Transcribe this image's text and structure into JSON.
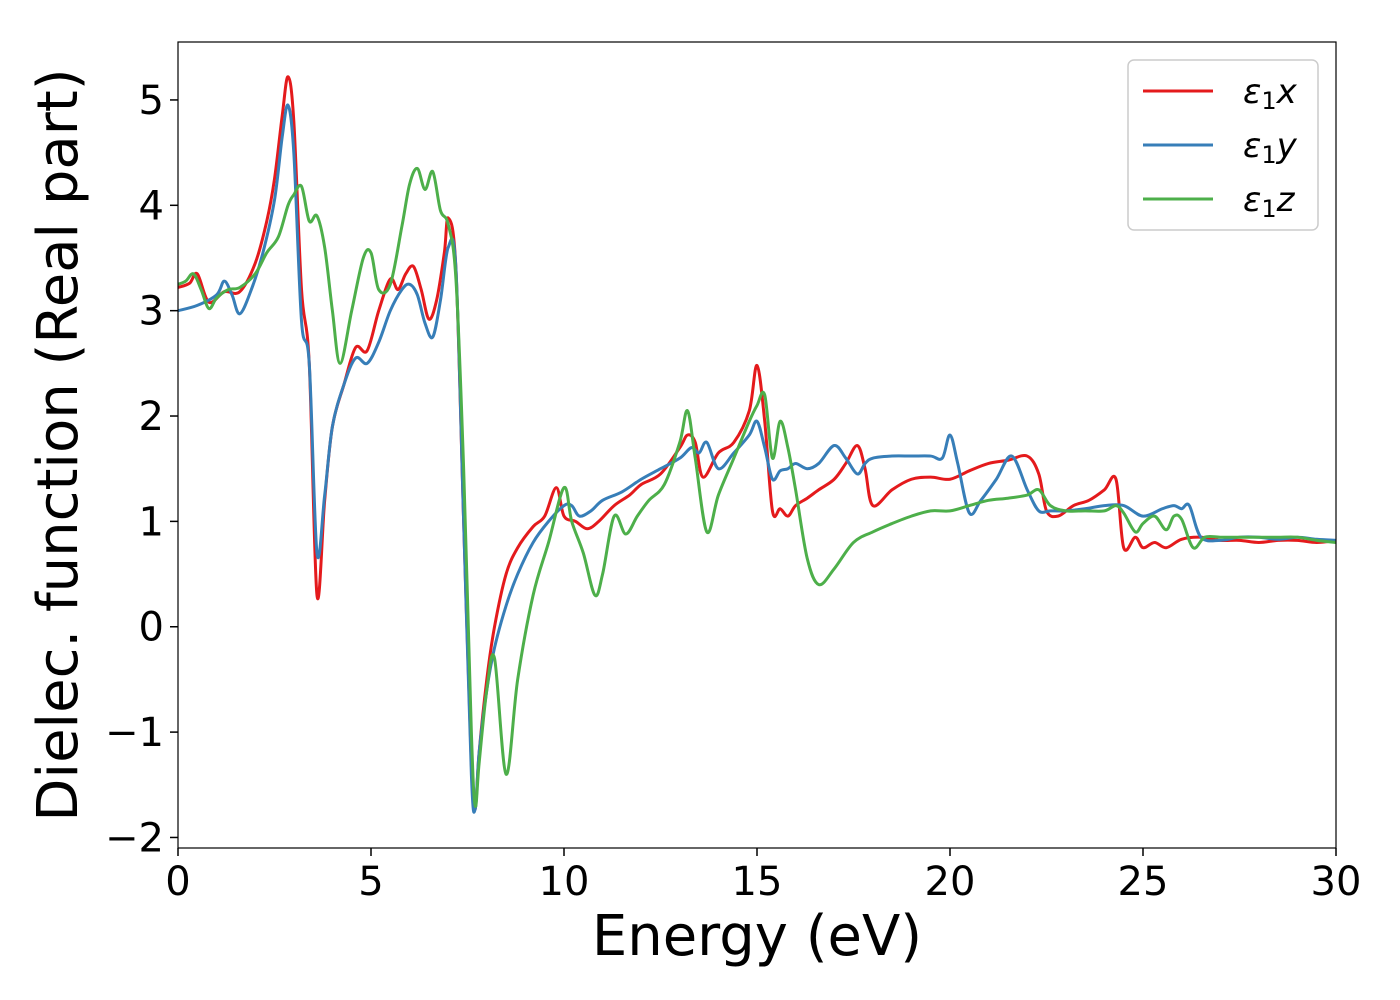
{
  "chart_data": {
    "type": "line",
    "title": "",
    "xlabel": "Energy (eV)",
    "ylabel": "Dielec. function (Real part)",
    "xlim": [
      0,
      30
    ],
    "ylim": [
      -2.1,
      5.55
    ],
    "xticks": [
      {
        "value": 0,
        "label": "0"
      },
      {
        "value": 5,
        "label": "5"
      },
      {
        "value": 10,
        "label": "10"
      },
      {
        "value": 15,
        "label": "15"
      },
      {
        "value": 20,
        "label": "20"
      },
      {
        "value": 25,
        "label": "25"
      },
      {
        "value": 30,
        "label": "30"
      }
    ],
    "yticks": [
      {
        "value": -2,
        "label": "−2"
      },
      {
        "value": -1,
        "label": "−1"
      },
      {
        "value": 0,
        "label": "0"
      },
      {
        "value": 1,
        "label": "1"
      },
      {
        "value": 2,
        "label": "2"
      },
      {
        "value": 3,
        "label": "3"
      },
      {
        "value": 4,
        "label": "4"
      },
      {
        "value": 5,
        "label": "5"
      }
    ],
    "grid": false,
    "legend_position": "top-right",
    "series": [
      {
        "name": "ε₁x",
        "legend_symbol": "ε",
        "legend_sub": "1",
        "legend_var": "x",
        "color": "#e41a1c",
        "x": [
          0,
          0.3,
          0.5,
          0.8,
          1.2,
          1.6,
          2.0,
          2.3,
          2.5,
          2.7,
          2.85,
          3.0,
          3.2,
          3.4,
          3.6,
          3.8,
          4.0,
          4.3,
          4.6,
          4.9,
          5.2,
          5.5,
          5.7,
          5.9,
          6.1,
          6.3,
          6.5,
          6.7,
          6.9,
          7.0,
          7.2,
          7.4,
          7.6,
          7.7,
          7.8,
          8.0,
          8.2,
          8.5,
          8.8,
          9.2,
          9.5,
          9.8,
          10.0,
          10.3,
          10.6,
          10.9,
          11.3,
          11.7,
          12.0,
          12.5,
          13.0,
          13.2,
          13.4,
          13.6,
          14.0,
          14.4,
          14.8,
          15.0,
          15.2,
          15.4,
          15.6,
          15.8,
          16.0,
          16.3,
          16.6,
          17.0,
          17.3,
          17.6,
          17.8,
          18.0,
          18.5,
          19.0,
          19.5,
          20.0,
          20.5,
          21.0,
          21.5,
          22.0,
          22.3,
          22.5,
          22.8,
          23.2,
          23.6,
          24.0,
          24.3,
          24.5,
          24.8,
          25.0,
          25.3,
          25.6,
          26.0,
          26.5,
          27.0,
          27.5,
          28.0,
          28.5,
          29.0,
          29.5,
          30.0
        ],
        "y": [
          3.22,
          3.26,
          3.35,
          3.08,
          3.18,
          3.18,
          3.45,
          3.85,
          4.25,
          4.85,
          5.22,
          4.8,
          3.2,
          2.5,
          0.3,
          1.2,
          1.9,
          2.3,
          2.65,
          2.62,
          3.0,
          3.3,
          3.2,
          3.35,
          3.42,
          3.2,
          2.92,
          3.1,
          3.55,
          3.88,
          3.4,
          1.0,
          -1.3,
          -1.73,
          -1.2,
          -0.5,
          0.0,
          0.5,
          0.75,
          0.95,
          1.05,
          1.32,
          1.05,
          1.0,
          0.93,
          1.0,
          1.15,
          1.25,
          1.35,
          1.45,
          1.7,
          1.82,
          1.75,
          1.42,
          1.65,
          1.75,
          2.05,
          2.48,
          1.95,
          1.1,
          1.12,
          1.05,
          1.15,
          1.22,
          1.3,
          1.4,
          1.55,
          1.72,
          1.5,
          1.15,
          1.3,
          1.4,
          1.42,
          1.4,
          1.48,
          1.55,
          1.58,
          1.62,
          1.45,
          1.1,
          1.05,
          1.15,
          1.2,
          1.3,
          1.4,
          0.75,
          0.85,
          0.75,
          0.8,
          0.75,
          0.83,
          0.85,
          0.82,
          0.82,
          0.8,
          0.82,
          0.82,
          0.8,
          0.82
        ]
      },
      {
        "name": "ε₁y",
        "legend_symbol": "ε",
        "legend_sub": "1",
        "legend_var": "y",
        "color": "#377eb8",
        "x": [
          0,
          0.5,
          1.0,
          1.2,
          1.4,
          1.6,
          1.9,
          2.2,
          2.5,
          2.7,
          2.85,
          3.0,
          3.2,
          3.4,
          3.6,
          3.8,
          4.0,
          4.3,
          4.6,
          4.9,
          5.2,
          5.5,
          5.8,
          6.0,
          6.2,
          6.4,
          6.6,
          6.8,
          7.0,
          7.2,
          7.4,
          7.6,
          7.7,
          7.8,
          8.0,
          8.2,
          8.5,
          8.8,
          9.2,
          9.6,
          10.0,
          10.2,
          10.4,
          10.7,
          11.0,
          11.5,
          12.0,
          12.5,
          13.0,
          13.3,
          13.5,
          13.7,
          14.0,
          14.4,
          14.8,
          15.0,
          15.2,
          15.4,
          15.6,
          15.8,
          16.0,
          16.3,
          16.6,
          17.0,
          17.3,
          17.6,
          17.8,
          18.0,
          18.5,
          19.0,
          19.5,
          19.8,
          20.0,
          20.2,
          20.5,
          20.8,
          21.2,
          21.6,
          22.0,
          22.3,
          22.6,
          23.0,
          23.5,
          24.0,
          24.5,
          25.0,
          25.5,
          25.8,
          26.0,
          26.2,
          26.5,
          27.0,
          27.5,
          28.0,
          28.5,
          29.0,
          29.5,
          30.0
        ],
        "y": [
          3.0,
          3.05,
          3.15,
          3.28,
          3.15,
          2.97,
          3.2,
          3.55,
          4.05,
          4.65,
          4.95,
          4.5,
          2.9,
          2.5,
          0.7,
          1.25,
          1.9,
          2.3,
          2.55,
          2.5,
          2.7,
          3.0,
          3.2,
          3.25,
          3.15,
          2.88,
          2.75,
          3.1,
          3.6,
          3.4,
          1.0,
          -1.4,
          -1.73,
          -1.2,
          -0.6,
          -0.2,
          0.2,
          0.5,
          0.8,
          1.0,
          1.15,
          1.15,
          1.05,
          1.1,
          1.2,
          1.28,
          1.4,
          1.5,
          1.6,
          1.7,
          1.65,
          1.75,
          1.5,
          1.65,
          1.82,
          1.95,
          1.7,
          1.4,
          1.48,
          1.5,
          1.55,
          1.5,
          1.55,
          1.72,
          1.6,
          1.45,
          1.55,
          1.6,
          1.62,
          1.62,
          1.62,
          1.6,
          1.82,
          1.55,
          1.08,
          1.2,
          1.4,
          1.62,
          1.3,
          1.1,
          1.1,
          1.1,
          1.12,
          1.15,
          1.15,
          1.05,
          1.12,
          1.15,
          1.12,
          1.15,
          0.85,
          0.82,
          0.85,
          0.85,
          0.83,
          0.85,
          0.83,
          0.82
        ]
      },
      {
        "name": "ε₁z",
        "legend_symbol": "ε",
        "legend_sub": "1",
        "legend_var": "z",
        "color": "#4daf4a",
        "x": [
          0,
          0.2,
          0.4,
          0.6,
          0.8,
          1.0,
          1.3,
          1.6,
          2.0,
          2.3,
          2.6,
          2.85,
          3.0,
          3.2,
          3.4,
          3.6,
          3.8,
          4.0,
          4.2,
          4.5,
          4.8,
          5.0,
          5.2,
          5.5,
          5.8,
          6.0,
          6.2,
          6.4,
          6.6,
          6.8,
          7.0,
          7.2,
          7.4,
          7.6,
          7.7,
          7.8,
          8.0,
          8.2,
          8.5,
          8.8,
          9.2,
          9.6,
          10.0,
          10.2,
          10.5,
          10.8,
          11.0,
          11.3,
          11.6,
          11.9,
          12.2,
          12.6,
          13.0,
          13.2,
          13.4,
          13.7,
          14.0,
          14.4,
          14.8,
          15.0,
          15.2,
          15.4,
          15.6,
          15.8,
          16.0,
          16.3,
          16.6,
          17.0,
          17.5,
          18.0,
          18.5,
          19.0,
          19.5,
          20.0,
          20.5,
          21.0,
          21.5,
          22.0,
          22.3,
          22.6,
          23.0,
          23.5,
          24.0,
          24.3,
          24.5,
          24.8,
          25.0,
          25.3,
          25.6,
          25.8,
          26.0,
          26.3,
          26.6,
          27.0,
          27.5,
          28.0,
          28.5,
          29.0,
          29.5,
          30.0
        ],
        "y": [
          3.25,
          3.28,
          3.35,
          3.2,
          3.02,
          3.12,
          3.2,
          3.22,
          3.35,
          3.55,
          3.7,
          4.0,
          4.1,
          4.18,
          3.85,
          3.9,
          3.6,
          3.0,
          2.5,
          3.0,
          3.5,
          3.55,
          3.2,
          3.25,
          3.8,
          4.2,
          4.35,
          4.15,
          4.32,
          3.95,
          3.82,
          3.3,
          1.5,
          -1.0,
          -1.7,
          -1.3,
          -0.6,
          -0.3,
          -1.4,
          -0.5,
          0.3,
          0.8,
          1.32,
          1.0,
          0.7,
          0.3,
          0.5,
          1.05,
          0.88,
          1.05,
          1.2,
          1.35,
          1.75,
          2.05,
          1.6,
          0.9,
          1.25,
          1.6,
          1.95,
          2.1,
          2.2,
          1.6,
          1.95,
          1.7,
          1.3,
          0.65,
          0.4,
          0.55,
          0.8,
          0.9,
          0.98,
          1.05,
          1.1,
          1.1,
          1.15,
          1.2,
          1.22,
          1.25,
          1.3,
          1.15,
          1.1,
          1.1,
          1.1,
          1.15,
          1.08,
          0.9,
          0.98,
          1.05,
          0.92,
          1.05,
          1.02,
          0.75,
          0.85,
          0.85,
          0.85,
          0.85,
          0.85,
          0.85,
          0.82,
          0.8
        ]
      }
    ]
  }
}
